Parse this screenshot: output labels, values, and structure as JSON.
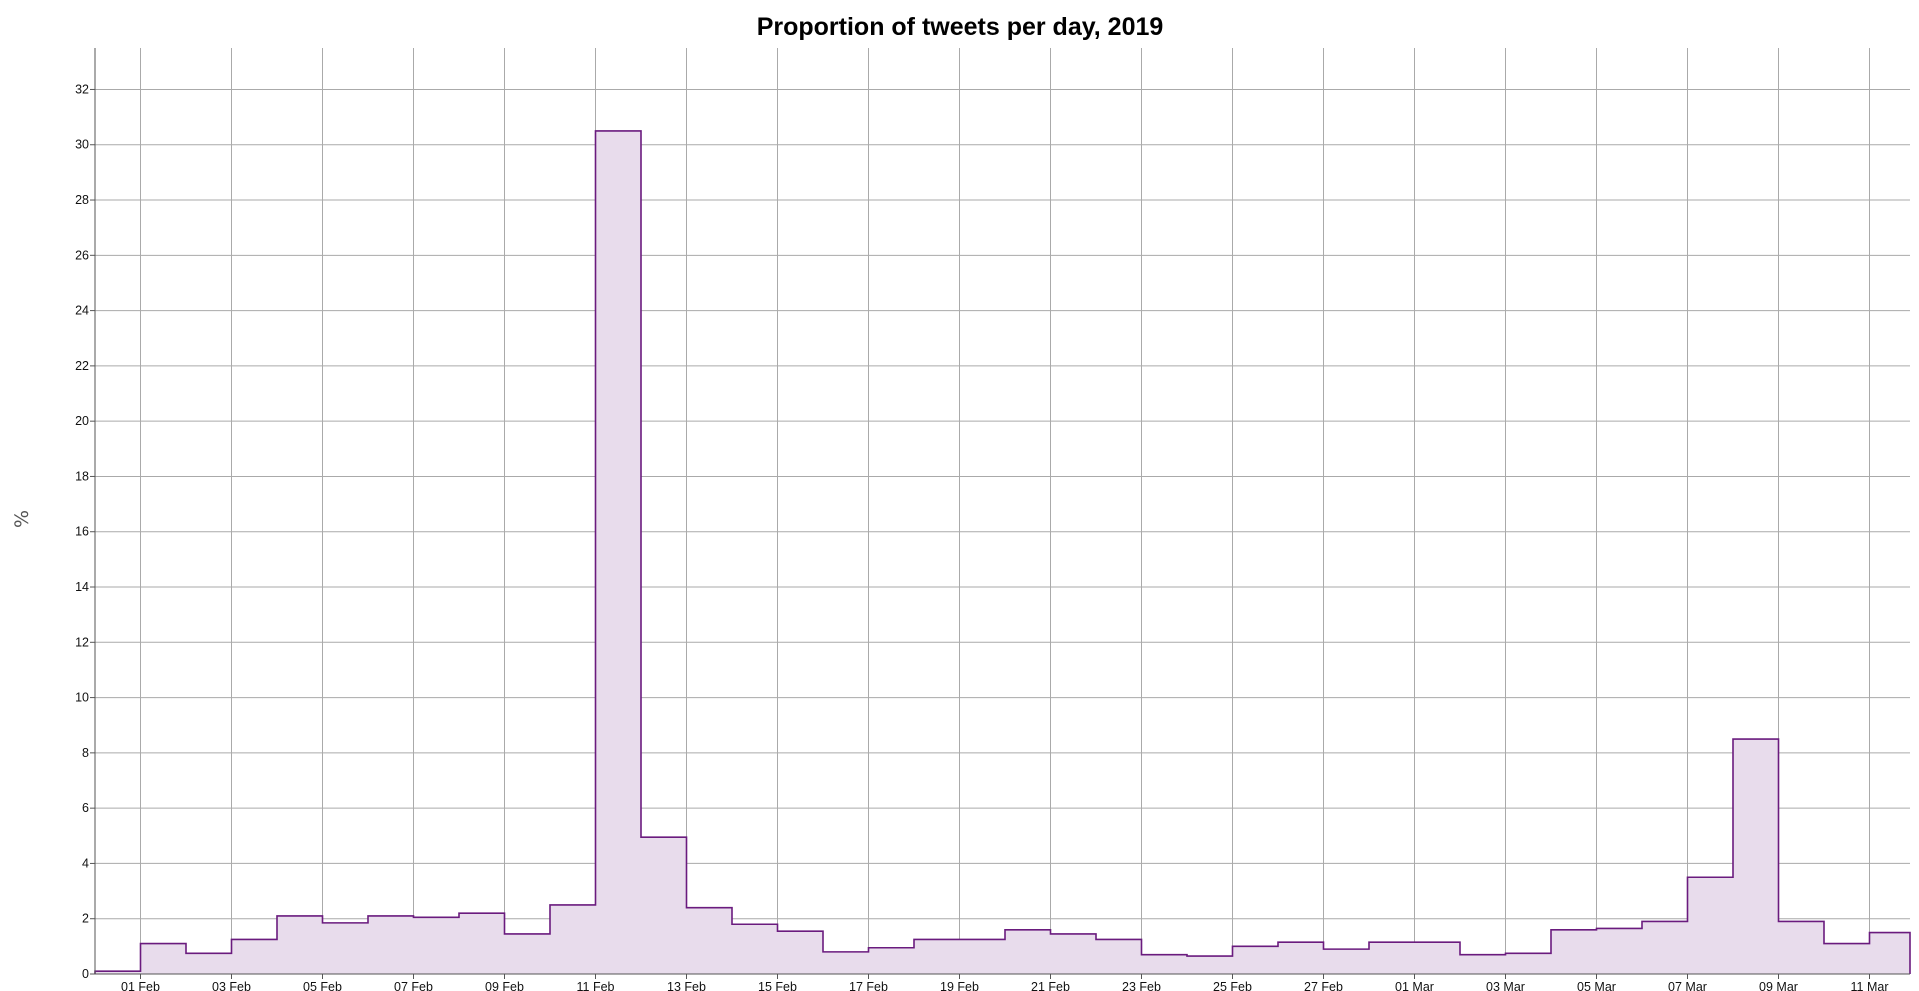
{
  "chart_data": {
    "type": "area",
    "title": "Proportion of tweets per day, 2019",
    "xlabel": "",
    "ylabel": "%",
    "ylim": [
      0,
      33.5
    ],
    "yticks": [
      0,
      2,
      4,
      6,
      8,
      10,
      12,
      14,
      16,
      18,
      20,
      22,
      24,
      26,
      28,
      30,
      32
    ],
    "x_tick_dates": [
      "2019-02-01",
      "2019-02-03",
      "2019-02-05",
      "2019-02-07",
      "2019-02-09",
      "2019-02-11",
      "2019-02-13",
      "2019-02-15",
      "2019-02-17",
      "2019-02-19",
      "2019-02-21",
      "2019-02-23",
      "2019-02-25",
      "2019-02-27",
      "2019-03-01",
      "2019-03-03",
      "2019-03-05",
      "2019-03-07",
      "2019-03-09",
      "2019-03-11"
    ],
    "x_tick_labels": [
      "01 Feb",
      "03 Feb",
      "05 Feb",
      "07 Feb",
      "09 Feb",
      "11 Feb",
      "13 Feb",
      "15 Feb",
      "17 Feb",
      "19 Feb",
      "21 Feb",
      "23 Feb",
      "25 Feb",
      "27 Feb",
      "01 Mar",
      "03 Mar",
      "05 Mar",
      "07 Mar",
      "09 Mar",
      "11 Mar"
    ],
    "x": [
      "2019-01-31",
      "2019-02-01",
      "2019-02-02",
      "2019-02-03",
      "2019-02-04",
      "2019-02-05",
      "2019-02-06",
      "2019-02-07",
      "2019-02-08",
      "2019-02-09",
      "2019-02-10",
      "2019-02-11",
      "2019-02-12",
      "2019-02-13",
      "2019-02-14",
      "2019-02-15",
      "2019-02-16",
      "2019-02-17",
      "2019-02-18",
      "2019-02-19",
      "2019-02-20",
      "2019-02-21",
      "2019-02-22",
      "2019-02-23",
      "2019-02-24",
      "2019-02-25",
      "2019-02-26",
      "2019-02-27",
      "2019-02-28",
      "2019-03-01",
      "2019-03-02",
      "2019-03-03",
      "2019-03-04",
      "2019-03-05",
      "2019-03-06",
      "2019-03-07",
      "2019-03-08",
      "2019-03-09",
      "2019-03-10",
      "2019-03-11"
    ],
    "values": [
      0.1,
      1.1,
      0.75,
      1.25,
      2.1,
      1.85,
      2.1,
      2.05,
      2.2,
      1.45,
      2.5,
      30.5,
      4.95,
      2.4,
      1.8,
      1.55,
      0.8,
      0.95,
      1.25,
      1.25,
      1.6,
      1.45,
      1.25,
      0.7,
      0.65,
      1.0,
      1.15,
      0.9,
      1.15,
      1.15,
      0.7,
      0.75,
      1.6,
      1.65,
      1.9,
      3.5,
      8.5,
      1.9,
      1.1,
      1.5
    ],
    "grid": true,
    "colors": {
      "line": "#6a1b7e",
      "fill": "#e8dcec",
      "grid": "#aaaaaa",
      "axis": "#555555"
    }
  }
}
